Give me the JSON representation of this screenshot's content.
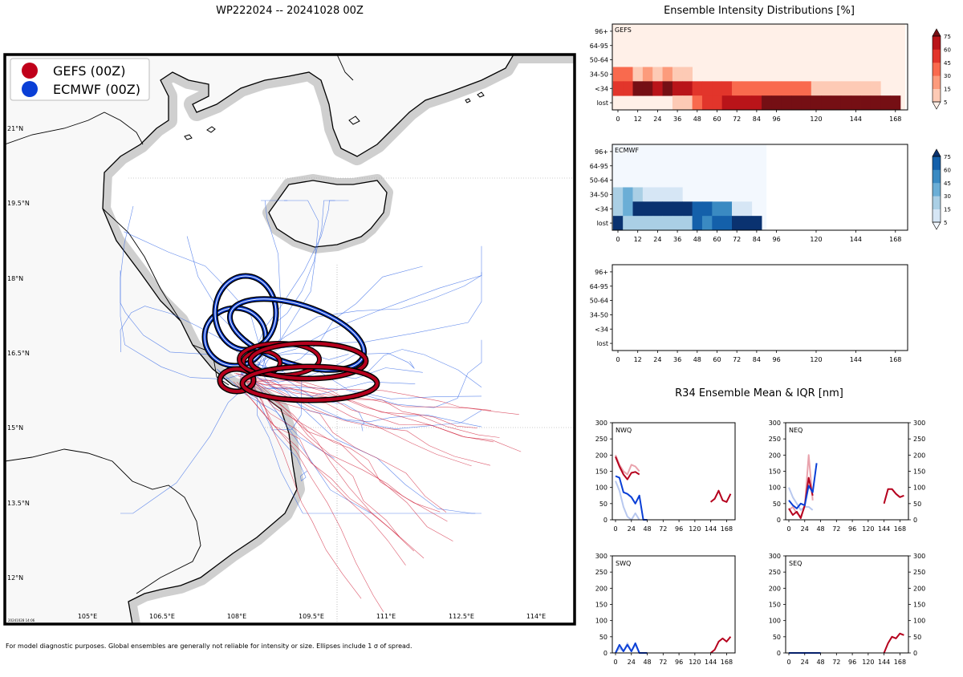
{
  "main_title": "WP222024 -- 20241028 00Z",
  "footnote": "For model diagnostic purposes. Global ensembles are generally not reliable for intensity or size. Ellipses include 1 σ of spread.",
  "map": {
    "legend": [
      {
        "label": "GEFS (00Z)",
        "color": "#c0001a"
      },
      {
        "label": "ECMWF (00Z)",
        "color": "#0a3fd6"
      }
    ],
    "lat_labels": [
      "21°N",
      "19.5°N",
      "18°N",
      "16.5°N",
      "15°N",
      "13.5°N",
      "12°N"
    ],
    "lon_labels": [
      "105°E",
      "106.5°E",
      "108°E",
      "109.5°E",
      "111°E",
      "112.5°E",
      "114°E"
    ],
    "stamp": "20241028 14:06",
    "colors": {
      "land": "#f8f8f8",
      "sea": "#ffffff",
      "coast_shadow": "#cfcfcf",
      "gefs": "#b5001d",
      "ecmwf": "#0a3fd6"
    }
  },
  "chart_data": [
    {
      "type": "heatmap",
      "title": "Ensemble Intensity Distributions [%]",
      "panel_label": "GEFS",
      "y_categories": [
        "96+",
        "64-95",
        "50-64",
        "34-50",
        "<34",
        "lost"
      ],
      "x_ticks": [
        0,
        12,
        24,
        36,
        48,
        60,
        72,
        84,
        96,
        120,
        144,
        168
      ],
      "colorbar_ticks": [
        5,
        15,
        30,
        45,
        60,
        75
      ],
      "colormap": "Reds",
      "columns_x": [
        0,
        6,
        12,
        18,
        24,
        30,
        36,
        42,
        48,
        54,
        60,
        66,
        72,
        78,
        84,
        90,
        96,
        102,
        108,
        114,
        120,
        126,
        132,
        138,
        144,
        150,
        156,
        162,
        168
      ],
      "values": {
        "34-50": [
          40,
          35,
          12,
          20,
          8,
          22,
          5,
          5,
          0,
          0,
          0,
          0,
          0,
          0,
          0,
          0,
          0,
          0,
          0,
          0,
          0,
          0,
          0,
          0,
          0,
          0,
          0,
          0,
          0
        ],
        "<34": [
          55,
          52,
          75,
          85,
          70,
          85,
          65,
          65,
          55,
          55,
          45,
          45,
          30,
          30,
          30,
          30,
          30,
          30,
          30,
          30,
          12,
          12,
          12,
          12,
          12,
          12,
          12,
          0,
          0
        ],
        "lost": [
          0,
          0,
          0,
          0,
          0,
          0,
          5,
          5,
          35,
          55,
          55,
          65,
          65,
          65,
          65,
          85,
          85,
          85,
          85,
          85,
          85,
          85,
          85,
          85,
          85,
          85,
          85,
          85,
          85
        ]
      }
    },
    {
      "type": "heatmap",
      "panel_label": "ECMWF",
      "y_categories": [
        "96+",
        "64-95",
        "50-64",
        "34-50",
        "<34",
        "lost"
      ],
      "x_ticks": [
        0,
        12,
        24,
        36,
        48,
        60,
        72,
        84,
        96,
        120,
        144,
        168
      ],
      "colorbar_ticks": [
        5,
        15,
        30,
        45,
        60,
        75
      ],
      "colormap": "Blues",
      "columns_x": [
        0,
        6,
        12,
        18,
        24,
        30,
        36,
        42,
        48,
        54,
        60,
        66,
        72,
        78,
        84
      ],
      "values": {
        "34-50": [
          25,
          30,
          20,
          12,
          12,
          12,
          12,
          0,
          0,
          0,
          0,
          0,
          0,
          0,
          0
        ],
        "<34": [
          20,
          30,
          75,
          75,
          75,
          75,
          75,
          75,
          60,
          60,
          45,
          45,
          12,
          12,
          0
        ],
        "lost": [
          75,
          20,
          20,
          20,
          20,
          20,
          20,
          20,
          60,
          45,
          60,
          60,
          85,
          85,
          85
        ]
      }
    },
    {
      "type": "heatmap",
      "panel_label": "",
      "y_categories": [
        "96+",
        "64-95",
        "50-64",
        "34-50",
        "<34",
        "lost"
      ],
      "x_ticks": [
        0,
        12,
        24,
        36,
        48,
        60,
        72,
        84,
        96,
        120,
        144,
        168
      ],
      "values": {}
    },
    {
      "type": "line",
      "title": "R34 Ensemble Mean & IQR [nm]",
      "panel_label": "NWQ",
      "x_ticks": [
        0,
        24,
        48,
        72,
        96,
        120,
        144,
        168
      ],
      "y_ticks": [
        0,
        50,
        100,
        150,
        200,
        250,
        300
      ],
      "ylim": [
        0,
        300
      ],
      "series": [
        {
          "role": "gefs_iqr",
          "points": [
            [
              0,
              200
            ],
            [
              6,
              170
            ],
            [
              12,
              150
            ],
            [
              18,
              140
            ],
            [
              24,
              170
            ],
            [
              30,
              165
            ],
            [
              36,
              150
            ]
          ]
        },
        {
          "role": "ecmwf_iqr",
          "points": [
            [
              0,
              120
            ],
            [
              6,
              90
            ],
            [
              12,
              40
            ],
            [
              18,
              10
            ],
            [
              24,
              0
            ],
            [
              30,
              20
            ],
            [
              36,
              0
            ]
          ]
        },
        {
          "role": "gefs_mean",
          "points": [
            [
              0,
              195
            ],
            [
              6,
              165
            ],
            [
              12,
              140
            ],
            [
              18,
              125
            ],
            [
              24,
              145
            ],
            [
              30,
              148
            ],
            [
              36,
              140
            ]
          ]
        },
        {
          "role": "ecmwf_mean",
          "points": [
            [
              0,
              135
            ],
            [
              6,
              130
            ],
            [
              12,
              85
            ],
            [
              18,
              80
            ],
            [
              24,
              70
            ],
            [
              30,
              50
            ],
            [
              36,
              75
            ],
            [
              42,
              0
            ],
            [
              48,
              0
            ]
          ]
        },
        {
          "role": "gefs_mean_late",
          "points": [
            [
              144,
              55
            ],
            [
              150,
              65
            ],
            [
              156,
              90
            ],
            [
              162,
              60
            ],
            [
              168,
              55
            ],
            [
              174,
              80
            ]
          ]
        }
      ]
    },
    {
      "type": "line",
      "panel_label": "NEQ",
      "x_ticks": [
        0,
        24,
        48,
        72,
        96,
        120,
        144,
        168
      ],
      "y_ticks": [
        0,
        50,
        100,
        150,
        200,
        250,
        300
      ],
      "ylim": [
        0,
        300
      ],
      "series": [
        {
          "role": "gefs_iqr",
          "points": [
            [
              0,
              30
            ],
            [
              6,
              40
            ],
            [
              12,
              20
            ],
            [
              18,
              10
            ],
            [
              24,
              40
            ],
            [
              30,
              200
            ],
            [
              36,
              60
            ]
          ]
        },
        {
          "role": "ecmwf_iqr",
          "points": [
            [
              0,
              100
            ],
            [
              6,
              70
            ],
            [
              12,
              50
            ],
            [
              18,
              30
            ],
            [
              24,
              40
            ],
            [
              30,
              40
            ],
            [
              36,
              30
            ]
          ]
        },
        {
          "role": "gefs_mean",
          "points": [
            [
              0,
              35
            ],
            [
              6,
              15
            ],
            [
              12,
              25
            ],
            [
              18,
              5
            ],
            [
              24,
              45
            ],
            [
              30,
              130
            ],
            [
              36,
              75
            ]
          ]
        },
        {
          "role": "ecmwf_mean",
          "points": [
            [
              0,
              60
            ],
            [
              6,
              45
            ],
            [
              12,
              35
            ],
            [
              18,
              50
            ],
            [
              24,
              45
            ],
            [
              30,
              105
            ],
            [
              36,
              85
            ],
            [
              42,
              175
            ]
          ]
        },
        {
          "role": "gefs_mean_late",
          "points": [
            [
              144,
              50
            ],
            [
              150,
              95
            ],
            [
              156,
              95
            ],
            [
              162,
              80
            ],
            [
              168,
              70
            ],
            [
              174,
              75
            ]
          ]
        }
      ]
    },
    {
      "type": "line",
      "panel_label": "SWQ",
      "x_ticks": [
        0,
        24,
        48,
        72,
        96,
        120,
        144,
        168
      ],
      "y_ticks": [
        0,
        50,
        100,
        150,
        200,
        250,
        300
      ],
      "ylim": [
        0,
        300
      ],
      "series": [
        {
          "role": "ecmwf_iqr",
          "points": [
            [
              0,
              0
            ],
            [
              6,
              15
            ],
            [
              12,
              5
            ],
            [
              18,
              30
            ],
            [
              24,
              5
            ],
            [
              30,
              25
            ],
            [
              36,
              0
            ]
          ]
        },
        {
          "role": "ecmwf_mean",
          "points": [
            [
              0,
              0
            ],
            [
              6,
              25
            ],
            [
              12,
              5
            ],
            [
              18,
              25
            ],
            [
              24,
              5
            ],
            [
              30,
              30
            ],
            [
              36,
              0
            ],
            [
              48,
              0
            ]
          ]
        },
        {
          "role": "gefs_mean_late",
          "points": [
            [
              144,
              0
            ],
            [
              150,
              10
            ],
            [
              156,
              35
            ],
            [
              162,
              45
            ],
            [
              168,
              35
            ],
            [
              174,
              50
            ]
          ]
        }
      ]
    },
    {
      "type": "line",
      "panel_label": "SEQ",
      "x_ticks": [
        0,
        24,
        48,
        72,
        96,
        120,
        144,
        168
      ],
      "y_ticks": [
        0,
        50,
        100,
        150,
        200,
        250,
        300
      ],
      "ylim": [
        0,
        300
      ],
      "series": [
        {
          "role": "ecmwf_mean",
          "points": [
            [
              0,
              0
            ],
            [
              12,
              0
            ],
            [
              24,
              0
            ],
            [
              36,
              0
            ],
            [
              48,
              0
            ]
          ]
        },
        {
          "role": "gefs_mean_late",
          "points": [
            [
              144,
              0
            ],
            [
              150,
              30
            ],
            [
              156,
              50
            ],
            [
              162,
              45
            ],
            [
              168,
              60
            ],
            [
              174,
              55
            ]
          ]
        }
      ]
    }
  ]
}
